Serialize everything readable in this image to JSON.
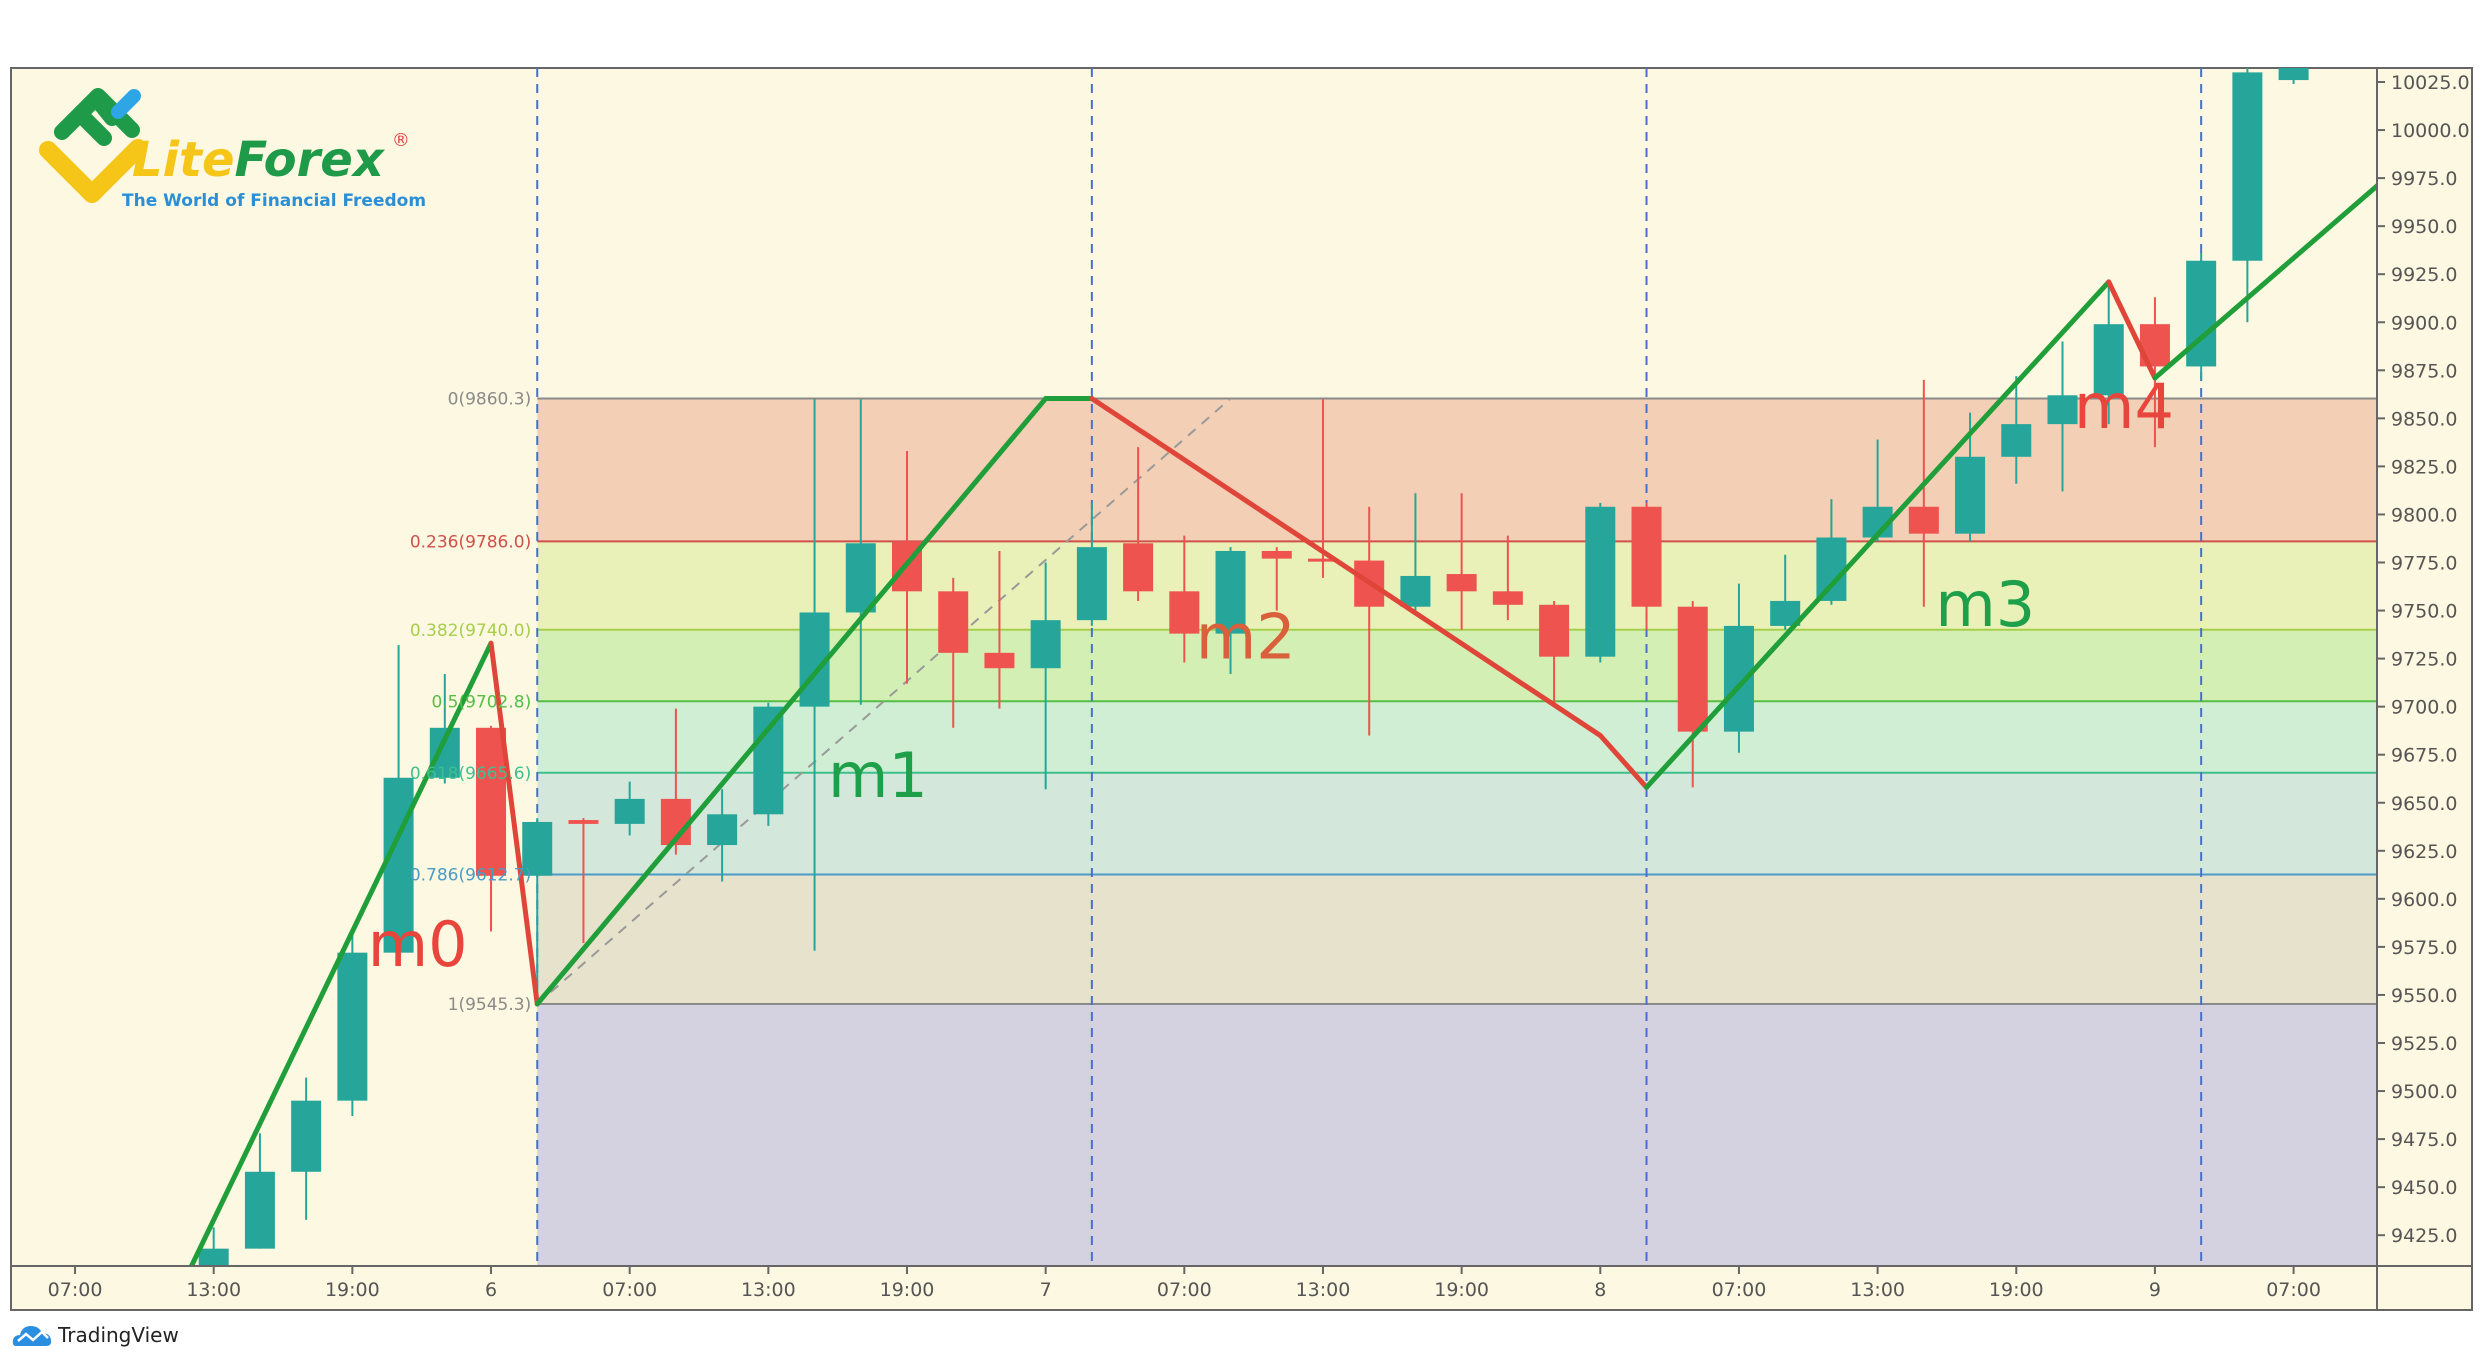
{
  "logo": {
    "brand_part1": "Lite",
    "brand_part2": "Forex",
    "registered": "®",
    "tagline": "The World of Financial Freedom"
  },
  "footer": {
    "brand": "TradingView",
    "icon": "tradingview-cloud-icon"
  },
  "chart_data": {
    "type": "candlestick",
    "title": "",
    "interval_hours": 2,
    "start": "5 13:00",
    "colors": {
      "up": "#26a69a",
      "down": "#ef5350",
      "background": "#fdf8e1",
      "zigzag_up": "#1f9e3a",
      "zigzag_down": "#e0453a"
    },
    "ylim": [
      9405,
      10035
    ],
    "y_ticks": [
      "10025.0",
      "10000.0",
      "9975.0",
      "9950.0",
      "9925.0",
      "9900.0",
      "9875.0",
      "9850.0",
      "9825.0",
      "9800.0",
      "9775.0",
      "9750.0",
      "9725.0",
      "9700.0",
      "9675.0",
      "9650.0",
      "9625.0",
      "9600.0",
      "9575.0",
      "9550.0",
      "9525.0",
      "9500.0",
      "9475.0",
      "9450.0",
      "9425.0"
    ],
    "x_ticks": [
      {
        "t": "5 07:00",
        "label": "07:00"
      },
      {
        "t": "5 13:00",
        "label": "13:00"
      },
      {
        "t": "5 19:00",
        "label": "19:00"
      },
      {
        "t": "6 01:00",
        "label": "6"
      },
      {
        "t": "6 07:00",
        "label": "07:00"
      },
      {
        "t": "6 13:00",
        "label": "13:00"
      },
      {
        "t": "6 19:00",
        "label": "19:00"
      },
      {
        "t": "7 01:00",
        "label": "7"
      },
      {
        "t": "7 07:00",
        "label": "07:00"
      },
      {
        "t": "7 13:00",
        "label": "13:00"
      },
      {
        "t": "7 19:00",
        "label": "19:00"
      },
      {
        "t": "8 01:00",
        "label": "8"
      },
      {
        "t": "8 07:00",
        "label": "07:00"
      },
      {
        "t": "8 13:00",
        "label": "13:00"
      },
      {
        "t": "8 19:00",
        "label": "19:00"
      },
      {
        "t": "9 01:00",
        "label": "9"
      },
      {
        "t": "9 07:00",
        "label": "07:00"
      }
    ],
    "candles": [
      [
        9405,
        9429,
        9400,
        9418
      ],
      [
        9418,
        9478,
        9418,
        9458
      ],
      [
        9458,
        9507,
        9433,
        9495
      ],
      [
        9495,
        9583,
        9487,
        9572
      ],
      [
        9572,
        9732,
        9572,
        9663
      ],
      [
        9663,
        9717,
        9660,
        9689
      ],
      [
        9689,
        9690,
        9583,
        9612
      ],
      [
        9612,
        9642,
        9545.3,
        9640
      ],
      [
        9641,
        9642,
        9577,
        9639
      ],
      [
        9639,
        9661,
        9633,
        9652
      ],
      [
        9652,
        9699,
        9623,
        9628
      ],
      [
        9628,
        9657,
        9609,
        9644
      ],
      [
        9644,
        9702,
        9638,
        9700
      ],
      [
        9700,
        9860,
        9573,
        9749
      ],
      [
        9749,
        9860,
        9701,
        9785
      ],
      [
        9786,
        9833,
        9712,
        9760
      ],
      [
        9760,
        9767,
        9689,
        9728
      ],
      [
        9728,
        9781,
        9699,
        9720
      ],
      [
        9720,
        9775,
        9657,
        9745
      ],
      [
        9745,
        9806,
        9742,
        9783
      ],
      [
        9785,
        9835,
        9755,
        9760
      ],
      [
        9760,
        9789,
        9723,
        9738
      ],
      [
        9738,
        9783,
        9717,
        9781
      ],
      [
        9781,
        9783,
        9750,
        9777
      ],
      [
        9777,
        9860,
        9767,
        9776
      ],
      [
        9776,
        9804,
        9685,
        9752
      ],
      [
        9752,
        9811,
        9750,
        9768
      ],
      [
        9769,
        9811,
        9740,
        9760
      ],
      [
        9760,
        9789,
        9745,
        9753
      ],
      [
        9753,
        9755,
        9701,
        9726
      ],
      [
        9726,
        9806,
        9723,
        9804
      ],
      [
        9804,
        9806,
        9740,
        9752
      ],
      [
        9752,
        9755,
        9658,
        9687
      ],
      [
        9687,
        9764,
        9676,
        9742
      ],
      [
        9742,
        9779,
        9740,
        9755
      ],
      [
        9755,
        9808,
        9753,
        9788
      ],
      [
        9788,
        9839,
        9786,
        9804
      ],
      [
        9804,
        9870,
        9752,
        9790
      ],
      [
        9790,
        9853,
        9786,
        9830
      ],
      [
        9830,
        9872,
        9816,
        9847
      ],
      [
        9847,
        9890,
        9812,
        9862
      ],
      [
        9862,
        9919,
        9847,
        9899
      ],
      [
        9899,
        9913,
        9835,
        9877
      ],
      [
        9877,
        9936,
        9870,
        9932
      ],
      [
        9932,
        10035,
        9900,
        10030
      ],
      [
        10026,
        10040,
        10024,
        10035
      ]
    ],
    "candle_format": [
      "open",
      "high",
      "low",
      "close"
    ],
    "fibonacci": {
      "levels": [
        {
          "ratio": "0",
          "price": 9860.3,
          "label": "0(9860.3)",
          "line": "#8a8a8a",
          "fill": "#f3cfb6"
        },
        {
          "ratio": "0.236",
          "price": 9786.0,
          "label": "0.236(9786.0)",
          "line": "#d0504a",
          "fill": "#e9f0b8"
        },
        {
          "ratio": "0.382",
          "price": 9740.0,
          "label": "0.382(9740.0)",
          "line": "#a6cf4c",
          "fill": "#d4efb4"
        },
        {
          "ratio": "0.5",
          "price": 9702.8,
          "label": "0.5(9702.8)",
          "line": "#55bf45",
          "fill": "#cfeed3"
        },
        {
          "ratio": "0.618",
          "price": 9665.6,
          "label": "0.618(9665.6)",
          "line": "#3fbf8f",
          "fill": "#d3e7da"
        },
        {
          "ratio": "0.786",
          "price": 9612.7,
          "label": "0.786(9612.7)",
          "line": "#4a9cc6",
          "fill": "#e6e2cc"
        },
        {
          "ratio": "1",
          "price": 9545.3,
          "label": "1(9545.3)",
          "line": "#8a8a8a",
          "fill": "#d4d1e0"
        }
      ],
      "start_t": "6 03:00",
      "trend_line": [
        {
          "t": "6 03:00",
          "price": 9545.3
        },
        {
          "t": "7 09:00",
          "price": 9860.3
        }
      ]
    },
    "vertical_markers": [
      "6 03:00",
      "7 03:00",
      "8 03:00",
      "9 03:00"
    ],
    "zigzag": [
      {
        "t": "5 12:00",
        "price": 9408
      },
      {
        "t": "6 01:00",
        "price": 9733
      },
      {
        "t": "6 03:00",
        "price": 9545.3
      },
      {
        "t": "7 01:00",
        "price": 9860.3
      },
      {
        "t": "7 03:00",
        "price": 9860.3
      },
      {
        "t": "8 01:00",
        "price": 9685
      },
      {
        "t": "8 03:00",
        "price": 9658
      },
      {
        "t": "8 23:00",
        "price": 9921
      },
      {
        "t": "9 01:00",
        "price": 9871
      },
      {
        "t": "9 11:00",
        "price": 9975
      }
    ],
    "annotations": [
      {
        "text": "m0",
        "t": "5 19:40",
        "price": 9565,
        "color": "#e8453c"
      },
      {
        "text": "m1",
        "t": "6 15:35",
        "price": 9653,
        "color": "#1ea04a"
      },
      {
        "text": "m2",
        "t": "7 07:30",
        "price": 9725,
        "color": "#d9603a"
      },
      {
        "text": "m3",
        "t": "8 15:30",
        "price": 9742,
        "color": "#1ea04a"
      },
      {
        "text": "m4",
        "t": "8 21:30",
        "price": 9845,
        "color": "#e8453c"
      }
    ]
  }
}
